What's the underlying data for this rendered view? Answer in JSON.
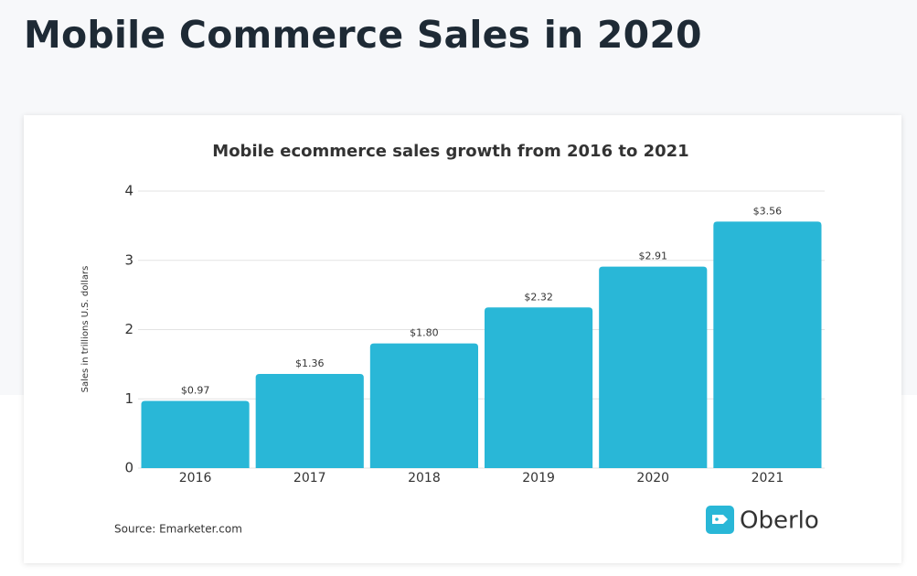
{
  "header": {
    "title": "Mobile Commerce Sales in 2020"
  },
  "chart_data": {
    "type": "bar",
    "title": "Mobile ecommerce sales growth from 2016 to 2021",
    "y_label": "Sales in trillions U.S. dollars",
    "categories": [
      "2016",
      "2017",
      "2018",
      "2019",
      "2020",
      "2021"
    ],
    "values": [
      0.97,
      1.36,
      1.8,
      2.32,
      2.91,
      3.56
    ],
    "value_labels": [
      "$0.97",
      "$1.36",
      "$1.80",
      "$2.32",
      "$2.91",
      "$3.56"
    ],
    "color": "#29b7d7",
    "ylim": [
      0,
      4
    ],
    "yticks": [
      0,
      1,
      2,
      3,
      4
    ],
    "grid": true,
    "source": "Source: Emarketer.com",
    "brand": "Oberlo"
  }
}
